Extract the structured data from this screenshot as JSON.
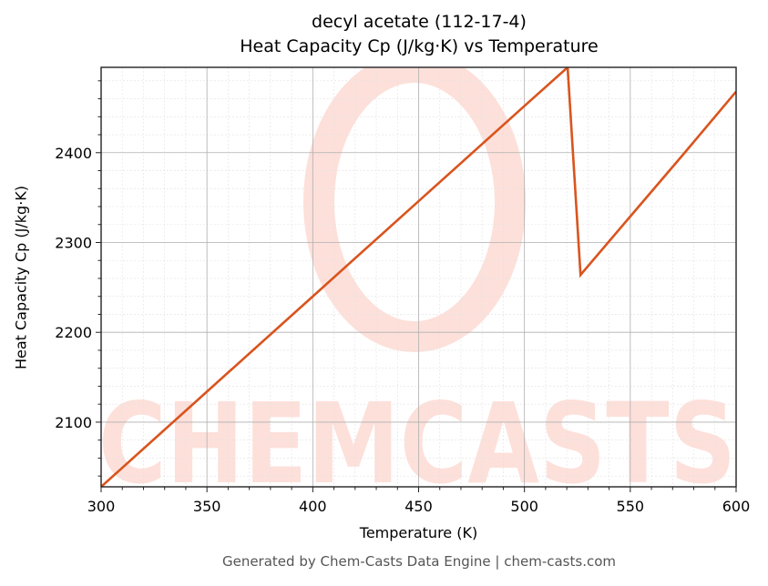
{
  "chart_data": {
    "type": "line",
    "title": "decyl acetate (112-17-4)",
    "subtitle": "Heat Capacity Cp (J/kg·K) vs Temperature",
    "xlabel": "Temperature (K)",
    "ylabel": "Heat Capacity Cp (J/kg·K)",
    "xlim": [
      300,
      600
    ],
    "ylim": [
      2028,
      2495
    ],
    "x_ticks": [
      300,
      350,
      400,
      450,
      500,
      550,
      600
    ],
    "y_ticks": [
      2100,
      2200,
      2300,
      2400
    ],
    "grid": true,
    "legend": null,
    "series": [
      {
        "name": "Cp",
        "color": "#D9541E",
        "x": [
          300,
          350,
          400,
          450,
          500,
          520.4,
          526.5,
          550,
          575,
          600
        ],
        "y": [
          2028,
          2134,
          2240,
          2346,
          2452,
          2495,
          2264,
          2329,
          2398,
          2468
        ]
      }
    ]
  },
  "watermark": {
    "text": "CHEMCASTS",
    "color": "#FDE0DA"
  },
  "footer": "Generated by Chem-Casts Data Engine | chem-casts.com"
}
